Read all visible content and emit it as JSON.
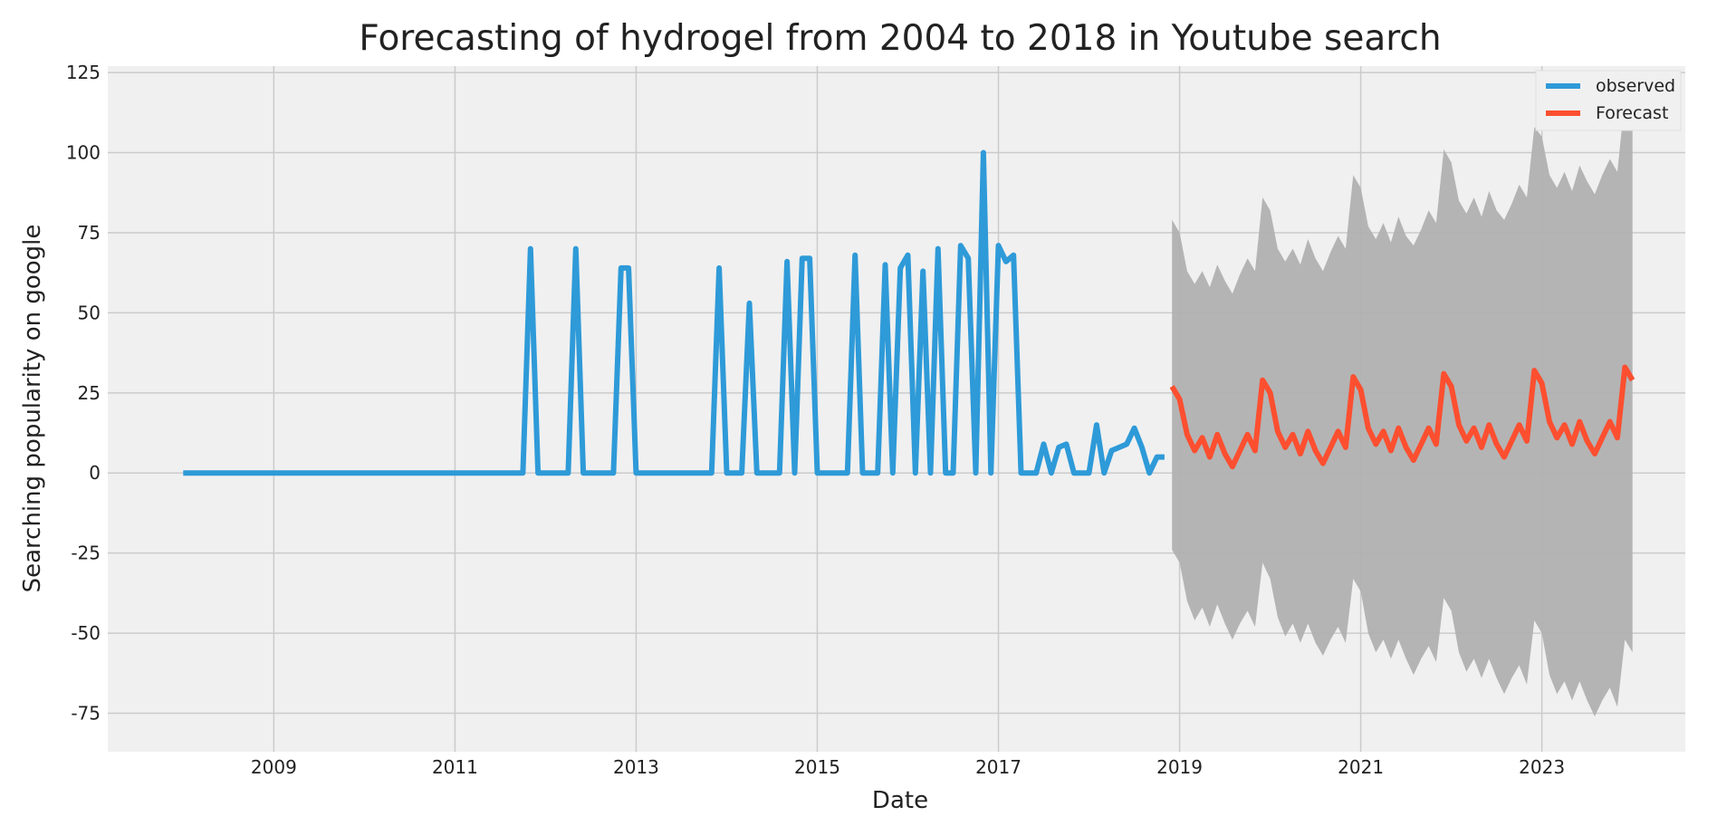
{
  "chart_data": {
    "type": "line",
    "title": "Forecasting of hydrogel from 2004 to 2018 in Youtube search",
    "xlabel": "Date",
    "ylabel": "Searching popularity on google",
    "xlim": [
      "2007-03-01",
      "2024-08-01"
    ],
    "ylim": [
      -87,
      127
    ],
    "x_ticks": [
      "2009",
      "2011",
      "2013",
      "2015",
      "2017",
      "2019",
      "2021",
      "2023"
    ],
    "y_ticks": [
      -75,
      -50,
      -25,
      0,
      25,
      50,
      75,
      100,
      125
    ],
    "grid": true,
    "legend_position": "top-right",
    "colors": {
      "observed": "#2e9ad8",
      "forecast": "#fc4f30",
      "confidence": "#b0b0b0",
      "plot_background": "#f0f0f0",
      "grid": "#cbcbcb"
    },
    "series": [
      {
        "name": "observed",
        "points": [
          [
            "2008-01-01",
            0
          ],
          [
            "2011-10-01",
            0
          ],
          [
            "2011-11-01",
            70
          ],
          [
            "2011-12-01",
            0
          ],
          [
            "2012-04-01",
            0
          ],
          [
            "2012-05-01",
            70
          ],
          [
            "2012-06-01",
            0
          ],
          [
            "2012-10-01",
            0
          ],
          [
            "2012-11-01",
            64
          ],
          [
            "2012-12-01",
            64
          ],
          [
            "2013-01-01",
            0
          ],
          [
            "2013-11-01",
            0
          ],
          [
            "2013-12-01",
            64
          ],
          [
            "2014-01-01",
            0
          ],
          [
            "2014-03-01",
            0
          ],
          [
            "2014-04-01",
            53
          ],
          [
            "2014-05-01",
            0
          ],
          [
            "2014-08-01",
            0
          ],
          [
            "2014-09-01",
            66
          ],
          [
            "2014-10-01",
            0
          ],
          [
            "2014-11-01",
            67
          ],
          [
            "2014-12-01",
            67
          ],
          [
            "2015-01-01",
            0
          ],
          [
            "2015-05-01",
            0
          ],
          [
            "2015-06-01",
            68
          ],
          [
            "2015-07-01",
            0
          ],
          [
            "2015-09-01",
            0
          ],
          [
            "2015-10-01",
            65
          ],
          [
            "2015-11-01",
            0
          ],
          [
            "2015-12-01",
            64
          ],
          [
            "2016-01-01",
            68
          ],
          [
            "2016-02-01",
            0
          ],
          [
            "2016-03-01",
            63
          ],
          [
            "2016-04-01",
            0
          ],
          [
            "2016-05-01",
            70
          ],
          [
            "2016-06-01",
            0
          ],
          [
            "2016-07-01",
            0
          ],
          [
            "2016-08-01",
            71
          ],
          [
            "2016-09-01",
            67
          ],
          [
            "2016-10-01",
            0
          ],
          [
            "2016-11-01",
            100
          ],
          [
            "2016-12-01",
            0
          ],
          [
            "2017-01-01",
            71
          ],
          [
            "2017-02-01",
            66
          ],
          [
            "2017-03-01",
            68
          ],
          [
            "2017-04-01",
            0
          ],
          [
            "2017-06-01",
            0
          ],
          [
            "2017-07-01",
            9
          ],
          [
            "2017-08-01",
            0
          ],
          [
            "2017-09-01",
            8
          ],
          [
            "2017-10-01",
            9
          ],
          [
            "2017-11-01",
            0
          ],
          [
            "2018-01-01",
            0
          ],
          [
            "2018-02-01",
            15
          ],
          [
            "2018-03-01",
            0
          ],
          [
            "2018-04-01",
            7
          ],
          [
            "2018-06-01",
            9
          ],
          [
            "2018-07-01",
            14
          ],
          [
            "2018-08-01",
            8
          ],
          [
            "2018-09-01",
            0
          ],
          [
            "2018-10-01",
            5
          ],
          [
            "2018-11-01",
            5
          ]
        ]
      },
      {
        "name": "Forecast",
        "points": [
          [
            "2018-12-01",
            27
          ],
          [
            "2019-01-01",
            23
          ],
          [
            "2019-02-01",
            12
          ],
          [
            "2019-03-01",
            7
          ],
          [
            "2019-04-01",
            11
          ],
          [
            "2019-05-01",
            5
          ],
          [
            "2019-06-01",
            12
          ],
          [
            "2019-07-01",
            6
          ],
          [
            "2019-08-01",
            2
          ],
          [
            "2019-09-01",
            7
          ],
          [
            "2019-10-01",
            12
          ],
          [
            "2019-11-01",
            7
          ],
          [
            "2019-12-01",
            29
          ],
          [
            "2020-01-01",
            25
          ],
          [
            "2020-02-01",
            13
          ],
          [
            "2020-03-01",
            8
          ],
          [
            "2020-04-01",
            12
          ],
          [
            "2020-05-01",
            6
          ],
          [
            "2020-06-01",
            13
          ],
          [
            "2020-07-01",
            7
          ],
          [
            "2020-08-01",
            3
          ],
          [
            "2020-09-01",
            8
          ],
          [
            "2020-10-01",
            13
          ],
          [
            "2020-11-01",
            8
          ],
          [
            "2020-12-01",
            30
          ],
          [
            "2021-01-01",
            26
          ],
          [
            "2021-02-01",
            14
          ],
          [
            "2021-03-01",
            9
          ],
          [
            "2021-04-01",
            13
          ],
          [
            "2021-05-01",
            7
          ],
          [
            "2021-06-01",
            14
          ],
          [
            "2021-07-01",
            8
          ],
          [
            "2021-08-01",
            4
          ],
          [
            "2021-09-01",
            9
          ],
          [
            "2021-10-01",
            14
          ],
          [
            "2021-11-01",
            9
          ],
          [
            "2021-12-01",
            31
          ],
          [
            "2022-01-01",
            27
          ],
          [
            "2022-02-01",
            15
          ],
          [
            "2022-03-01",
            10
          ],
          [
            "2022-04-01",
            14
          ],
          [
            "2022-05-01",
            8
          ],
          [
            "2022-06-01",
            15
          ],
          [
            "2022-07-01",
            9
          ],
          [
            "2022-08-01",
            5
          ],
          [
            "2022-09-01",
            10
          ],
          [
            "2022-10-01",
            15
          ],
          [
            "2022-11-01",
            10
          ],
          [
            "2022-12-01",
            32
          ],
          [
            "2023-01-01",
            28
          ],
          [
            "2023-02-01",
            16
          ],
          [
            "2023-03-01",
            11
          ],
          [
            "2023-04-01",
            15
          ],
          [
            "2023-05-01",
            9
          ],
          [
            "2023-06-01",
            16
          ],
          [
            "2023-07-01",
            10
          ],
          [
            "2023-08-01",
            6
          ],
          [
            "2023-09-01",
            11
          ],
          [
            "2023-10-01",
            16
          ],
          [
            "2023-11-01",
            11
          ],
          [
            "2023-12-01",
            33
          ],
          [
            "2024-01-01",
            29
          ]
        ]
      }
    ],
    "confidence_interval": {
      "x": [
        "2018-12-01",
        "2019-01-01",
        "2019-02-01",
        "2019-03-01",
        "2019-04-01",
        "2019-05-01",
        "2019-06-01",
        "2019-07-01",
        "2019-08-01",
        "2019-09-01",
        "2019-10-01",
        "2019-11-01",
        "2019-12-01",
        "2020-01-01",
        "2020-02-01",
        "2020-03-01",
        "2020-04-01",
        "2020-05-01",
        "2020-06-01",
        "2020-07-01",
        "2020-08-01",
        "2020-09-01",
        "2020-10-01",
        "2020-11-01",
        "2020-12-01",
        "2021-01-01",
        "2021-02-01",
        "2021-03-01",
        "2021-04-01",
        "2021-05-01",
        "2021-06-01",
        "2021-07-01",
        "2021-08-01",
        "2021-09-01",
        "2021-10-01",
        "2021-11-01",
        "2021-12-01",
        "2022-01-01",
        "2022-02-01",
        "2022-03-01",
        "2022-04-01",
        "2022-05-01",
        "2022-06-01",
        "2022-07-01",
        "2022-08-01",
        "2022-09-01",
        "2022-10-01",
        "2022-11-01",
        "2022-12-01",
        "2023-01-01",
        "2023-02-01",
        "2023-03-01",
        "2023-04-01",
        "2023-05-01",
        "2023-06-01",
        "2023-07-01",
        "2023-08-01",
        "2023-09-01",
        "2023-10-01",
        "2023-11-01",
        "2023-12-01",
        "2024-01-01"
      ],
      "upper": [
        79,
        75,
        63,
        59,
        63,
        58,
        65,
        60,
        56,
        62,
        67,
        63,
        86,
        82,
        70,
        66,
        70,
        65,
        73,
        67,
        63,
        69,
        74,
        70,
        93,
        89,
        77,
        73,
        78,
        72,
        80,
        74,
        71,
        76,
        82,
        78,
        101,
        97,
        85,
        81,
        86,
        80,
        88,
        82,
        79,
        84,
        90,
        86,
        108,
        105,
        93,
        89,
        94,
        88,
        96,
        91,
        87,
        93,
        98,
        94,
        117,
        113
      ],
      "lower": [
        -24,
        -28,
        -40,
        -46,
        -42,
        -48,
        -41,
        -47,
        -52,
        -47,
        -43,
        -48,
        -28,
        -33,
        -45,
        -51,
        -47,
        -53,
        -47,
        -53,
        -57,
        -52,
        -48,
        -53,
        -33,
        -37,
        -50,
        -56,
        -52,
        -58,
        -52,
        -58,
        -63,
        -58,
        -54,
        -59,
        -39,
        -43,
        -56,
        -62,
        -58,
        -64,
        -58,
        -64,
        -69,
        -64,
        -60,
        -66,
        -46,
        -50,
        -63,
        -69,
        -65,
        -71,
        -65,
        -71,
        -76,
        -71,
        -67,
        -73,
        -52,
        -56
      ]
    }
  }
}
